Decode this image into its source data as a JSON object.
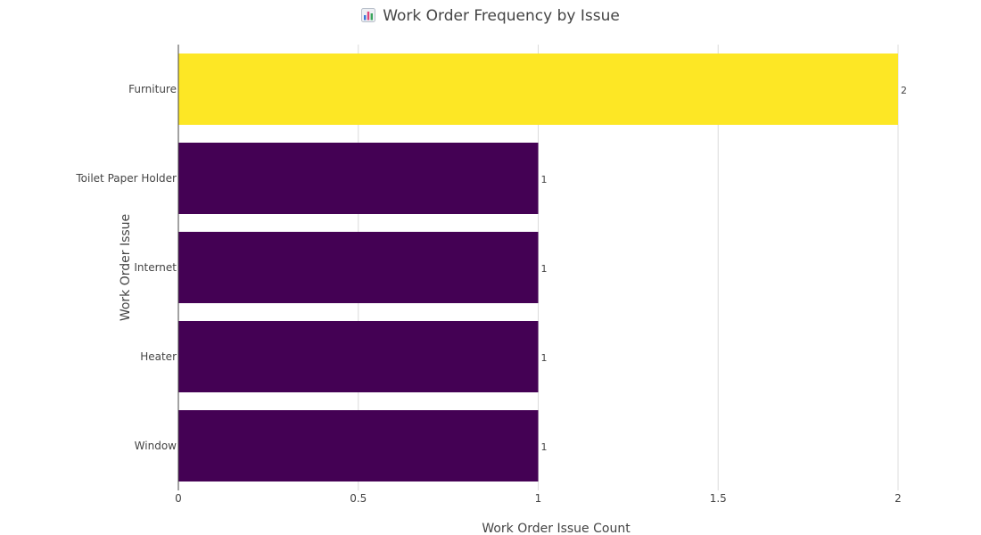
{
  "chart_data": {
    "type": "bar",
    "orientation": "horizontal",
    "title": "Work Order Frequency by Issue",
    "title_icon": "bar-chart-icon",
    "xlabel": "Work Order Issue Count",
    "ylabel": "Work Order Issue",
    "categories": [
      "Furniture",
      "Toilet Paper Holder",
      "Internet",
      "Heater",
      "Window"
    ],
    "values": [
      2,
      1,
      1,
      1,
      1
    ],
    "data_labels": [
      "2",
      "1",
      "1",
      "1",
      "1"
    ],
    "bar_colors": [
      "#fde725",
      "#440154",
      "#440154",
      "#440154",
      "#440154"
    ],
    "xlim": [
      0,
      2
    ],
    "xticks": [
      0,
      0.5,
      1,
      1.5,
      2
    ],
    "xtick_labels": [
      "0",
      "0.5",
      "1",
      "1.5",
      "2"
    ],
    "grid": true,
    "legend": "none"
  }
}
